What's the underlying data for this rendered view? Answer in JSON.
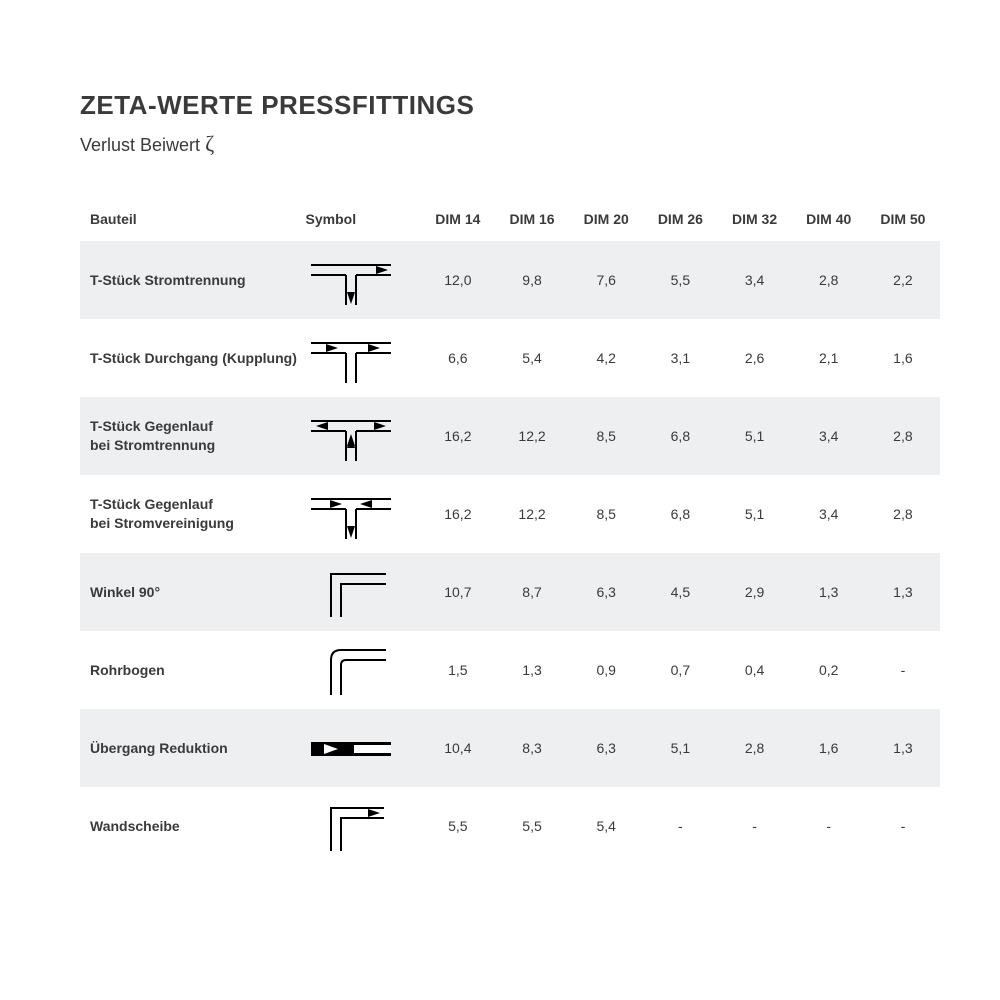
{
  "title": "ZETA-WERTE PRESSFITTINGS",
  "subtitle_prefix": "Verlust Beiwert ",
  "subtitle_symbol": "ζ",
  "colors": {
    "text": "#3a3a3a",
    "row_shade": "#eeeff0",
    "background": "#ffffff",
    "symbol_stroke": "#000000"
  },
  "typography": {
    "title_fontsize": 26,
    "subtitle_fontsize": 18,
    "header_fontsize": 14,
    "cell_fontsize": 14
  },
  "table": {
    "columns": [
      "Bauteil",
      "Symbol",
      "DIM 14",
      "DIM 16",
      "DIM 20",
      "DIM 26",
      "DIM 32",
      "DIM 40",
      "DIM 50"
    ],
    "rows": [
      {
        "name": "T-Stück Stromtrennung",
        "symbol": "tee-split",
        "values": [
          "12,0",
          "9,8",
          "7,6",
          "5,5",
          "3,4",
          "2,8",
          "2,2"
        ]
      },
      {
        "name": "T-Stück Durchgang (Kupplung)",
        "symbol": "tee-through",
        "values": [
          "6,6",
          "5,4",
          "4,2",
          "3,1",
          "2,6",
          "2,1",
          "1,6"
        ]
      },
      {
        "name": "T-Stück Gegenlauf\nbei Stromtrennung",
        "symbol": "tee-counter-split",
        "values": [
          "16,2",
          "12,2",
          "8,5",
          "6,8",
          "5,1",
          "3,4",
          "2,8"
        ]
      },
      {
        "name": "T-Stück Gegenlauf\nbei Stromvereinigung",
        "symbol": "tee-counter-merge",
        "values": [
          "16,2",
          "12,2",
          "8,5",
          "6,8",
          "5,1",
          "3,4",
          "2,8"
        ]
      },
      {
        "name": "Winkel 90°",
        "symbol": "angle-90",
        "values": [
          "10,7",
          "8,7",
          "6,3",
          "4,5",
          "2,9",
          "1,3",
          "1,3"
        ]
      },
      {
        "name": "Rohrbogen",
        "symbol": "pipe-bend",
        "values": [
          "1,5",
          "1,3",
          "0,9",
          "0,7",
          "0,4",
          "0,2",
          "-"
        ]
      },
      {
        "name": "Übergang Reduktion",
        "symbol": "reduction",
        "values": [
          "10,4",
          "8,3",
          "6,3",
          "5,1",
          "2,8",
          "1,6",
          "1,3"
        ]
      },
      {
        "name": "Wandscheibe",
        "symbol": "wall-disc",
        "values": [
          "5,5",
          "5,5",
          "5,4",
          "-",
          "-",
          "-",
          "-"
        ]
      }
    ]
  },
  "symbols": {
    "tee-split": "<svg viewBox='0 0 90 60'><g fill='none' stroke='#000' stroke-width='2'><line x1='5' y1='15' x2='85' y2='15'/><line x1='5' y1='25' x2='40' y2='25'/><line x1='50' y1='25' x2='85' y2='25'/><line x1='40' y1='25' x2='40' y2='55'/><line x1='50' y1='25' x2='50' y2='55'/></g><polygon points='70,16 82,20 70,24' fill='#000'/><polygon points='41,42 45,54 49,42' fill='#000'/></svg>",
    "tee-through": "<svg viewBox='0 0 90 60'><g fill='none' stroke='#000' stroke-width='2'><line x1='5' y1='15' x2='85' y2='15'/><line x1='5' y1='25' x2='40' y2='25'/><line x1='50' y1='25' x2='85' y2='25'/><line x1='40' y1='25' x2='40' y2='55'/><line x1='50' y1='25' x2='50' y2='55'/></g><polygon points='20,16 32,20 20,24' fill='#000'/><polygon points='62,16 74,20 62,24' fill='#000'/></svg>",
    "tee-counter-split": "<svg viewBox='0 0 90 60'><g fill='none' stroke='#000' stroke-width='2'><line x1='5' y1='15' x2='85' y2='15'/><line x1='5' y1='25' x2='40' y2='25'/><line x1='50' y1='25' x2='85' y2='25'/><line x1='40' y1='25' x2='40' y2='55'/><line x1='50' y1='25' x2='50' y2='55'/></g><polygon points='22,16 10,20 22,24' fill='#000'/><polygon points='68,16 80,20 68,24' fill='#000'/><polygon points='41,30 45,42 49,30' fill='#000' transform='rotate(180 45 36)'/><polygon points='41,42 45,54 49,42' fill='#000' transform='rotate(180 45 36)' opacity='0'/><polygon points='41,40 45,28 49,40' fill='#000'/></svg>",
    "tee-counter-merge": "<svg viewBox='0 0 90 60'><g fill='none' stroke='#000' stroke-width='2'><line x1='5' y1='15' x2='85' y2='15'/><line x1='5' y1='25' x2='40' y2='25'/><line x1='50' y1='25' x2='85' y2='25'/><line x1='40' y1='25' x2='40' y2='55'/><line x1='50' y1='25' x2='50' y2='55'/></g><polygon points='24,16 36,20 24,24' fill='#000'/><polygon points='66,16 54,20 66,24' fill='#000'/><polygon points='41,42 45,54 49,42' fill='#000'/></svg>",
    "angle-90": "<svg viewBox='0 0 90 60'><g fill='none' stroke='#000' stroke-width='2'><polyline points='25,55 25,12 80,12'/><polyline points='35,55 35,22 80,22'/></g></svg>",
    "pipe-bend": "<svg viewBox='0 0 90 60'><g fill='none' stroke='#000' stroke-width='2'><path d='M25 55 L25 20 Q25 10 35 10 L80 10'/><path d='M35 55 L35 25 Q35 20 40 20 L80 20'/></g></svg>",
    "reduction": "<svg viewBox='0 0 90 60'><g><rect x='5' y='24' width='80' height='14' fill='#000'/><rect x='48' y='27' width='37' height='8' fill='#fff'/><polygon points='18,26 32,31 18,36' fill='#fff'/></g></svg>",
    "wall-disc": "<svg viewBox='0 0 90 60'><g fill='none' stroke='#000' stroke-width='2'><polyline points='25,55 25,12 78,12'/><polyline points='35,55 35,22 78,22'/></g><polygon points='62,13 74,17 62,21' fill='#000'/></svg>"
  }
}
